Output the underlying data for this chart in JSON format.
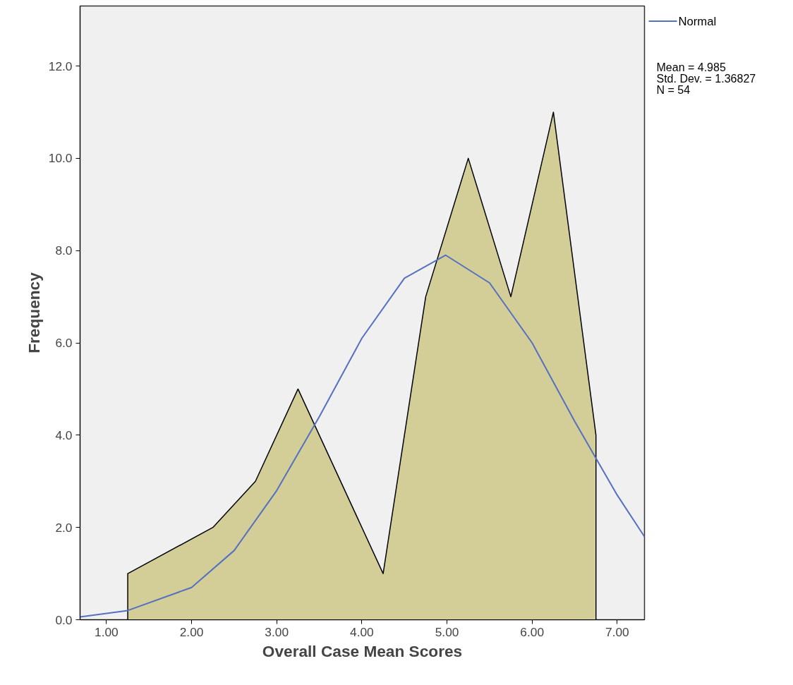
{
  "chart_data": {
    "type": "area",
    "xlabel": "Overall Case Mean Scores",
    "ylabel": "Frequency",
    "xlim": [
      0.69,
      7.32
    ],
    "ylim": [
      0,
      13.3
    ],
    "xticks": [
      {
        "value": 1,
        "label": "1.00"
      },
      {
        "value": 2,
        "label": "2.00"
      },
      {
        "value": 3,
        "label": "3.00"
      },
      {
        "value": 4,
        "label": "4.00"
      },
      {
        "value": 5,
        "label": "5.00"
      },
      {
        "value": 6,
        "label": "6.00"
      },
      {
        "value": 7,
        "label": "7.00"
      }
    ],
    "yticks": [
      {
        "value": 0,
        "label": "0.0"
      },
      {
        "value": 2,
        "label": "2.0"
      },
      {
        "value": 4,
        "label": "4.0"
      },
      {
        "value": 6,
        "label": "6.0"
      },
      {
        "value": 8,
        "label": "8.0"
      },
      {
        "value": 10,
        "label": "10.0"
      },
      {
        "value": 12,
        "label": "12.0"
      }
    ],
    "series": [
      {
        "color": "#d3ce97",
        "x": [
          1.25,
          1.25,
          2.25,
          2.75,
          3.25,
          4.25,
          4.75,
          5.25,
          5.75,
          6.25,
          6.75,
          6.75
        ],
        "values": [
          0,
          1,
          2,
          3,
          5,
          1,
          7,
          10,
          7,
          11,
          4,
          0
        ]
      },
      {
        "type": "line",
        "name": "Normal",
        "color": "#5470c0",
        "x": [
          0.69,
          1.25,
          2.0,
          2.5,
          3.0,
          3.5,
          4.0,
          4.5,
          4.985,
          5.5,
          6.0,
          6.5,
          7.0,
          7.32
        ],
        "values": [
          0.06,
          0.2,
          0.7,
          1.5,
          2.8,
          4.4,
          6.1,
          7.4,
          7.9,
          7.3,
          6.0,
          4.3,
          2.7,
          1.8
        ]
      }
    ],
    "legend": "top right",
    "grid": false,
    "annotations": [
      "Mean = 4.985",
      "Std. Dev. = 1.36827",
      "N = 54"
    ]
  }
}
